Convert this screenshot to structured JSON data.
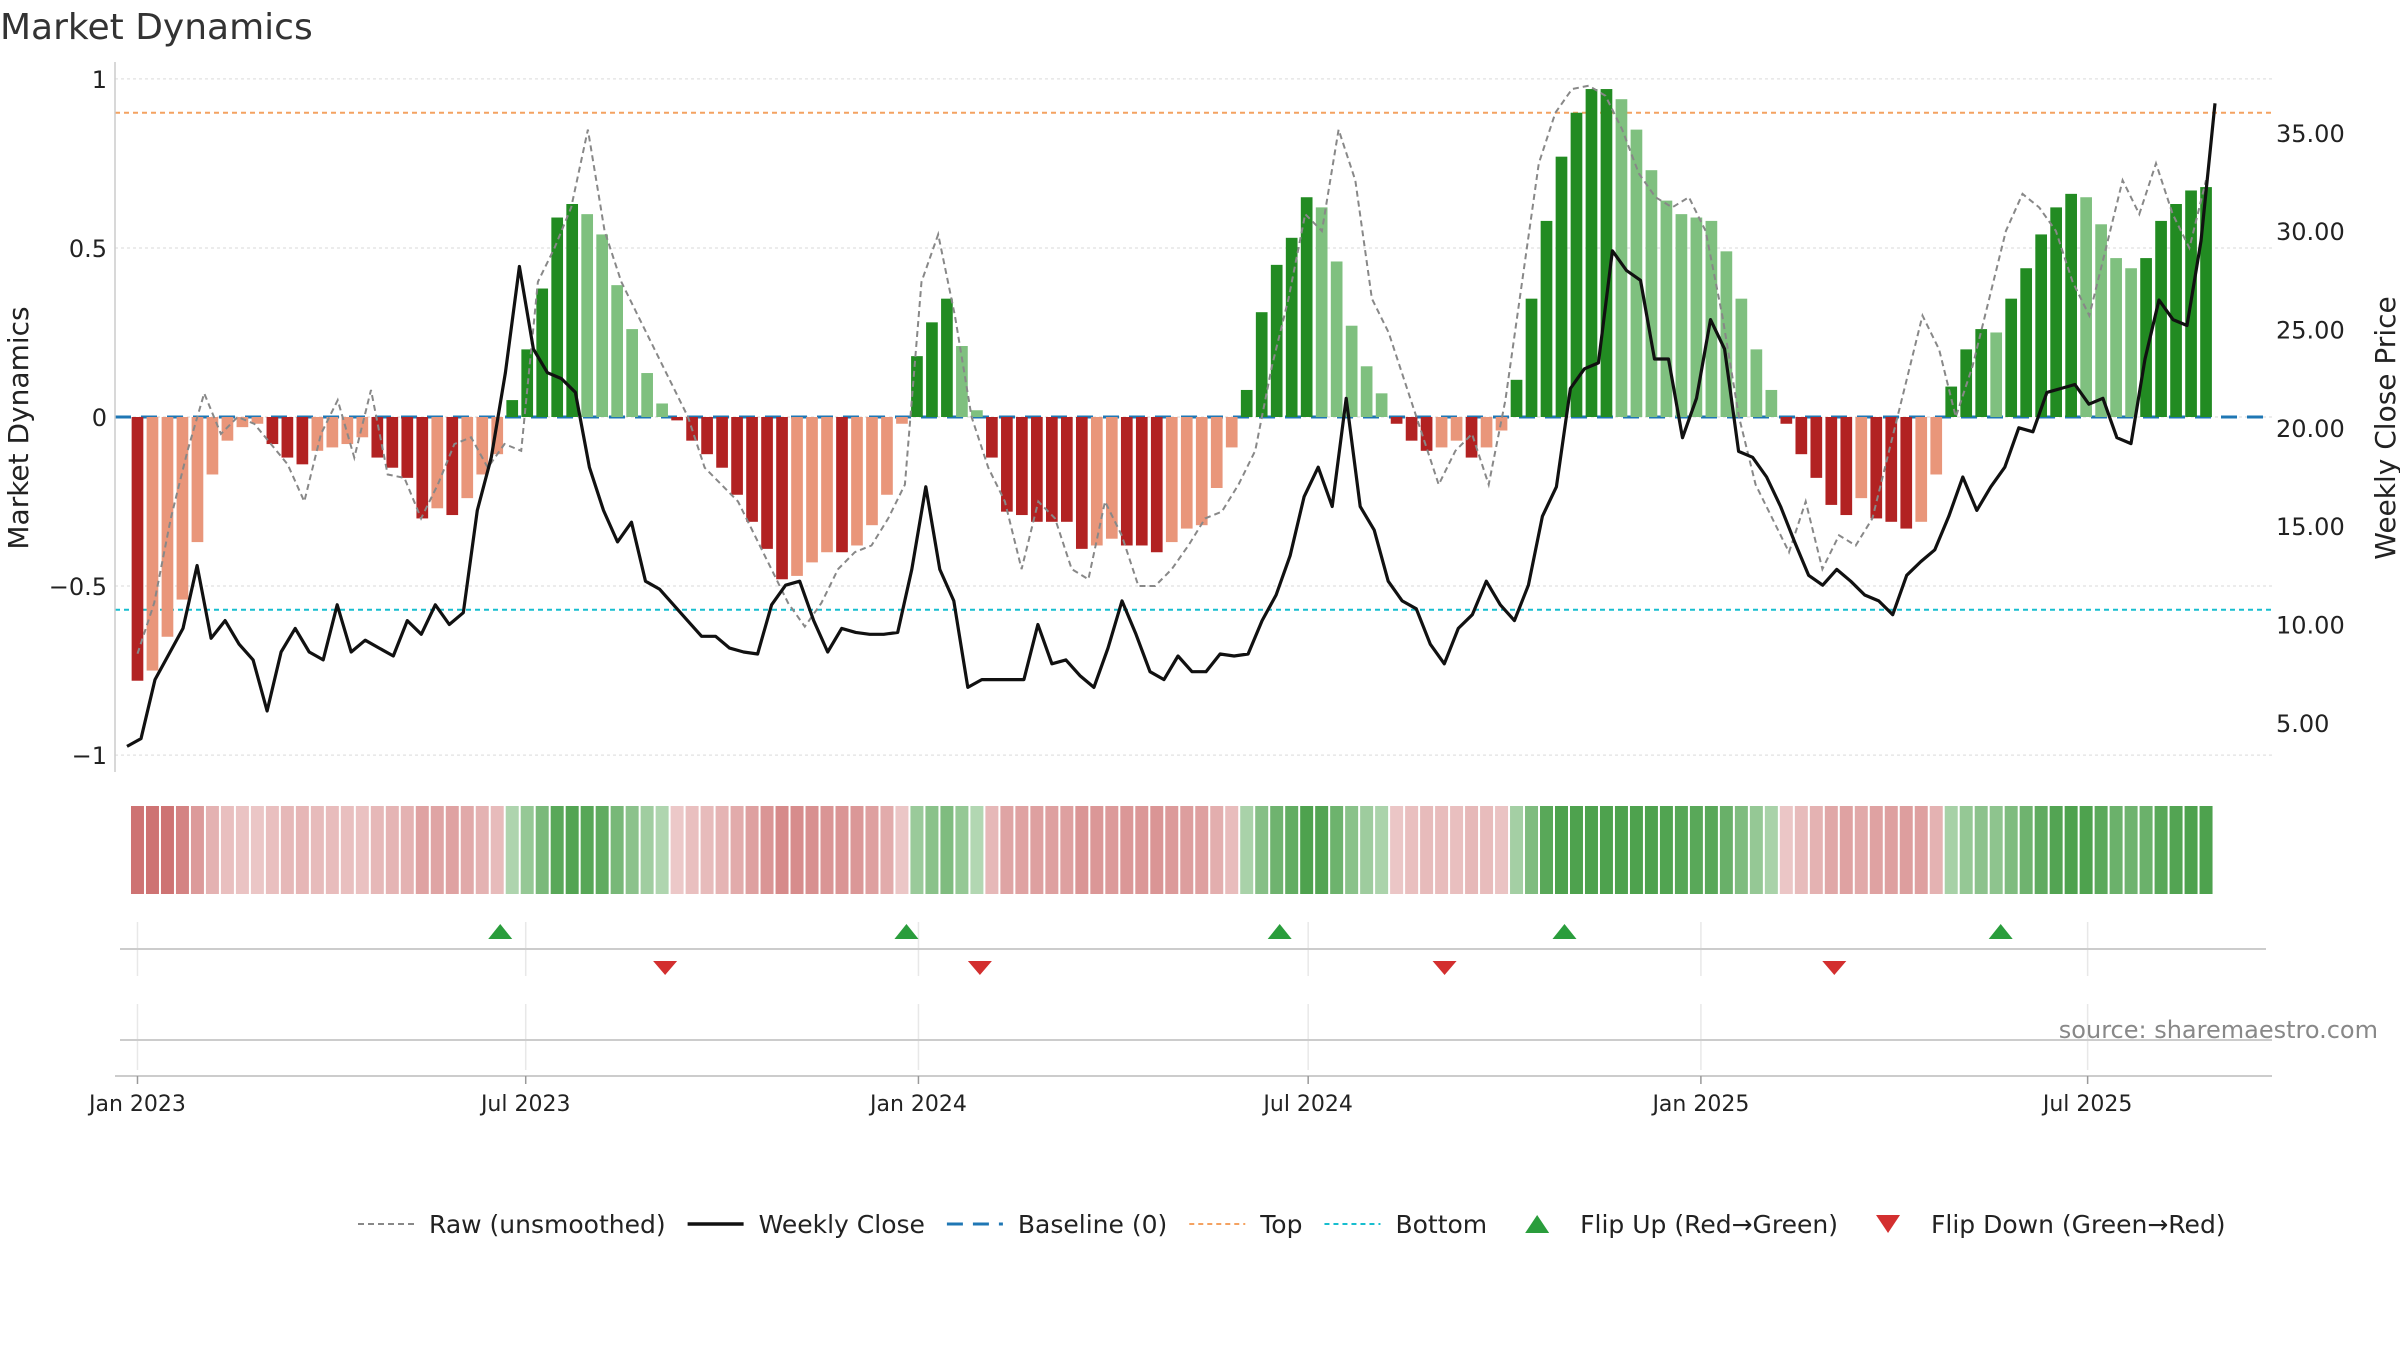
{
  "chart_data": {
    "type": "bar",
    "title": "Market Dynamics",
    "source": "source: sharemaestro.com",
    "ylabel": "Market Dynamics",
    "y2label": "Weekly Close Price",
    "ylim": [
      -1.05,
      1.05
    ],
    "y2lim": [
      2.5,
      38.6
    ],
    "yticks": [
      {
        "v": 1,
        "t": "1"
      },
      {
        "v": 0.5,
        "t": "0.5"
      },
      {
        "v": 0,
        "t": "0"
      },
      {
        "v": -0.5,
        "t": "−0.5"
      },
      {
        "v": -1,
        "t": "−1"
      }
    ],
    "y2ticks": [
      {
        "v": 5,
        "t": "5.00"
      },
      {
        "v": 10,
        "t": "10.00"
      },
      {
        "v": 15,
        "t": "15.00"
      },
      {
        "v": 20,
        "t": "20.00"
      },
      {
        "v": 25,
        "t": "25.00"
      },
      {
        "v": 30,
        "t": "30.00"
      },
      {
        "v": 35,
        "t": "35.00"
      }
    ],
    "xticks": [
      {
        "t": "Jan 2023",
        "w": 0
      },
      {
        "t": "Jul 2023",
        "w": 25.9
      },
      {
        "t": "Jan 2024",
        "w": 52.1
      },
      {
        "t": "Jul 2024",
        "w": 78.1
      },
      {
        "t": "Jan 2025",
        "w": 104.3
      },
      {
        "t": "Jul 2025",
        "w": 130.1
      }
    ],
    "week_start": -1.5,
    "week_end": 142.4,
    "top_level": 0.9,
    "bottom_level": -0.57,
    "baseline": 0,
    "dynamics": [
      -0.78,
      -0.75,
      -0.65,
      -0.54,
      -0.37,
      -0.17,
      -0.07,
      -0.03,
      -0.02,
      -0.08,
      -0.12,
      -0.14,
      -0.1,
      -0.09,
      -0.08,
      -0.06,
      -0.12,
      -0.15,
      -0.18,
      -0.3,
      -0.27,
      -0.29,
      -0.24,
      -0.17,
      -0.11,
      0.05,
      0.2,
      0.38,
      0.59,
      0.63,
      0.6,
      0.54,
      0.39,
      0.26,
      0.13,
      0.04,
      -0.01,
      -0.07,
      -0.11,
      -0.15,
      -0.23,
      -0.31,
      -0.39,
      -0.48,
      -0.47,
      -0.43,
      -0.4,
      -0.4,
      -0.38,
      -0.32,
      -0.23,
      -0.02,
      0.18,
      0.28,
      0.35,
      0.21,
      0.02,
      -0.12,
      -0.28,
      -0.29,
      -0.31,
      -0.31,
      -0.31,
      -0.39,
      -0.38,
      -0.36,
      -0.38,
      -0.38,
      -0.4,
      -0.37,
      -0.33,
      -0.32,
      -0.21,
      -0.09,
      0.08,
      0.31,
      0.45,
      0.53,
      0.65,
      0.62,
      0.46,
      0.27,
      0.15,
      0.07,
      -0.02,
      -0.07,
      -0.1,
      -0.09,
      -0.07,
      -0.12,
      -0.09,
      -0.04,
      0.11,
      0.35,
      0.58,
      0.77,
      0.9,
      0.97,
      0.97,
      0.94,
      0.85,
      0.73,
      0.64,
      0.6,
      0.59,
      0.58,
      0.49,
      0.35,
      0.2,
      0.08,
      -0.02,
      -0.11,
      -0.18,
      -0.26,
      -0.29,
      -0.24,
      -0.3,
      -0.31,
      -0.33,
      -0.31,
      -0.17,
      0.09,
      0.2,
      0.26,
      0.25,
      0.35,
      0.44,
      0.54,
      0.62,
      0.66,
      0.65,
      0.57,
      0.47,
      0.44,
      0.47,
      0.58,
      0.63,
      0.67,
      0.68
    ],
    "raw": [
      -0.7,
      -0.55,
      -0.3,
      -0.1,
      0.07,
      -0.05,
      0.0,
      -0.02,
      -0.08,
      -0.14,
      -0.25,
      -0.05,
      0.05,
      -0.12,
      0.08,
      -0.17,
      -0.18,
      -0.3,
      -0.2,
      -0.08,
      -0.06,
      -0.15,
      -0.08,
      -0.1,
      0.4,
      0.5,
      0.62,
      0.85,
      0.55,
      0.4,
      0.3,
      0.2,
      0.1,
      0.0,
      -0.15,
      -0.2,
      -0.25,
      -0.35,
      -0.45,
      -0.55,
      -0.62,
      -0.55,
      -0.45,
      -0.4,
      -0.38,
      -0.3,
      -0.2,
      0.4,
      0.54,
      0.3,
      0.0,
      -0.15,
      -0.25,
      -0.45,
      -0.25,
      -0.3,
      -0.45,
      -0.48,
      -0.25,
      -0.35,
      -0.5,
      -0.5,
      -0.45,
      -0.38,
      -0.3,
      -0.28,
      -0.2,
      -0.1,
      0.15,
      0.35,
      0.6,
      0.55,
      0.85,
      0.7,
      0.35,
      0.25,
      0.1,
      -0.05,
      -0.2,
      -0.1,
      -0.05,
      -0.2,
      0.05,
      0.4,
      0.75,
      0.9,
      0.97,
      0.98,
      0.95,
      0.85,
      0.72,
      0.65,
      0.62,
      0.65,
      0.55,
      0.3,
      0.0,
      -0.2,
      -0.3,
      -0.4,
      -0.25,
      -0.45,
      -0.35,
      -0.38,
      -0.3,
      -0.1,
      0.1,
      0.3,
      0.2,
      0.0,
      0.15,
      0.35,
      0.55,
      0.66,
      0.62,
      0.55,
      0.4,
      0.3,
      0.5,
      0.7,
      0.6,
      0.75,
      0.6,
      0.5,
      0.7
    ],
    "weekly_close": [
      3.8,
      4.2,
      7.2,
      8.5,
      9.8,
      13.0,
      9.3,
      10.2,
      9.0,
      8.2,
      5.6,
      8.6,
      9.8,
      8.6,
      8.2,
      11.0,
      8.6,
      9.2,
      8.8,
      8.4,
      10.2,
      9.5,
      11.0,
      10.0,
      10.6,
      15.8,
      18.5,
      22.8,
      28.2,
      24.0,
      22.8,
      22.5,
      21.8,
      18.0,
      15.8,
      14.2,
      15.2,
      12.2,
      11.8,
      11.0,
      10.2,
      9.4,
      9.4,
      8.8,
      8.6,
      8.5,
      11.0,
      12.0,
      12.2,
      10.2,
      8.6,
      9.8,
      9.6,
      9.5,
      9.5,
      9.6,
      12.8,
      17.0,
      12.8,
      11.2,
      6.8,
      7.2,
      7.2,
      7.2,
      7.2,
      10.0,
      8.0,
      8.2,
      7.4,
      6.8,
      8.8,
      11.2,
      9.5,
      7.6,
      7.2,
      8.4,
      7.6,
      7.6,
      8.5,
      8.4,
      8.5,
      10.2,
      11.5,
      13.5,
      16.5,
      18.0,
      16.0,
      21.5,
      16.0,
      14.8,
      12.2,
      11.2,
      10.8,
      9.0,
      8.0,
      9.8,
      10.5,
      12.2,
      11.0,
      10.2,
      12.0,
      15.5,
      17.0,
      22.0,
      23.0,
      23.3,
      29.0,
      28.0,
      27.5,
      23.5,
      23.5,
      19.5,
      21.5,
      25.5,
      24.0,
      18.8,
      18.5,
      17.5,
      16.0,
      14.2,
      12.5,
      12.0,
      12.8,
      12.2,
      11.5,
      11.2,
      10.5,
      12.5,
      13.2,
      13.8,
      15.5,
      17.5,
      15.8,
      17.0,
      18.0,
      20.0,
      19.8,
      21.8,
      22.0,
      22.2,
      21.2,
      21.5,
      19.5,
      19.2,
      23.5,
      26.5,
      25.5,
      25.2,
      29.5,
      36.5
    ],
    "strip_colors": [
      "#c87a7a",
      "#d08a8a",
      "#d89999",
      "#e0afaf",
      "#e8c9c9",
      "#ecd3d3",
      "#e0b2b2",
      "#a8d8a8",
      "#8fcb8f",
      "#7cc07c",
      "#5aad5a",
      "#c2e3c2",
      "#dcaaaa"
    ],
    "flip_up_weeks": [
      24.2,
      51.3,
      76.2,
      95.2,
      124.3
    ],
    "flip_down_weeks": [
      35.2,
      56.2,
      87.2,
      113.2
    ],
    "colors": {
      "red_strong": "#b22222",
      "red_light": "#e9967a",
      "green_strong": "#228b22",
      "green_light": "#7fc07f",
      "baseline": "#1f77b4",
      "top": "#f4a261",
      "bottom": "#17becf",
      "flip_up": "#2a9d3c",
      "flip_down": "#d32f2f",
      "close": "#111111",
      "raw": "#888888"
    },
    "legend": [
      {
        "label": "Raw (unsmoothed)",
        "kind": "raw"
      },
      {
        "label": "Weekly Close",
        "kind": "close"
      },
      {
        "label": "Baseline (0)",
        "kind": "baseline"
      },
      {
        "label": "Top",
        "kind": "top"
      },
      {
        "label": "Bottom",
        "kind": "bottom"
      },
      {
        "label": "Flip Up (Red→Green)",
        "kind": "flip_up"
      },
      {
        "label": "Flip Down (Green→Red)",
        "kind": "flip_down"
      }
    ]
  }
}
